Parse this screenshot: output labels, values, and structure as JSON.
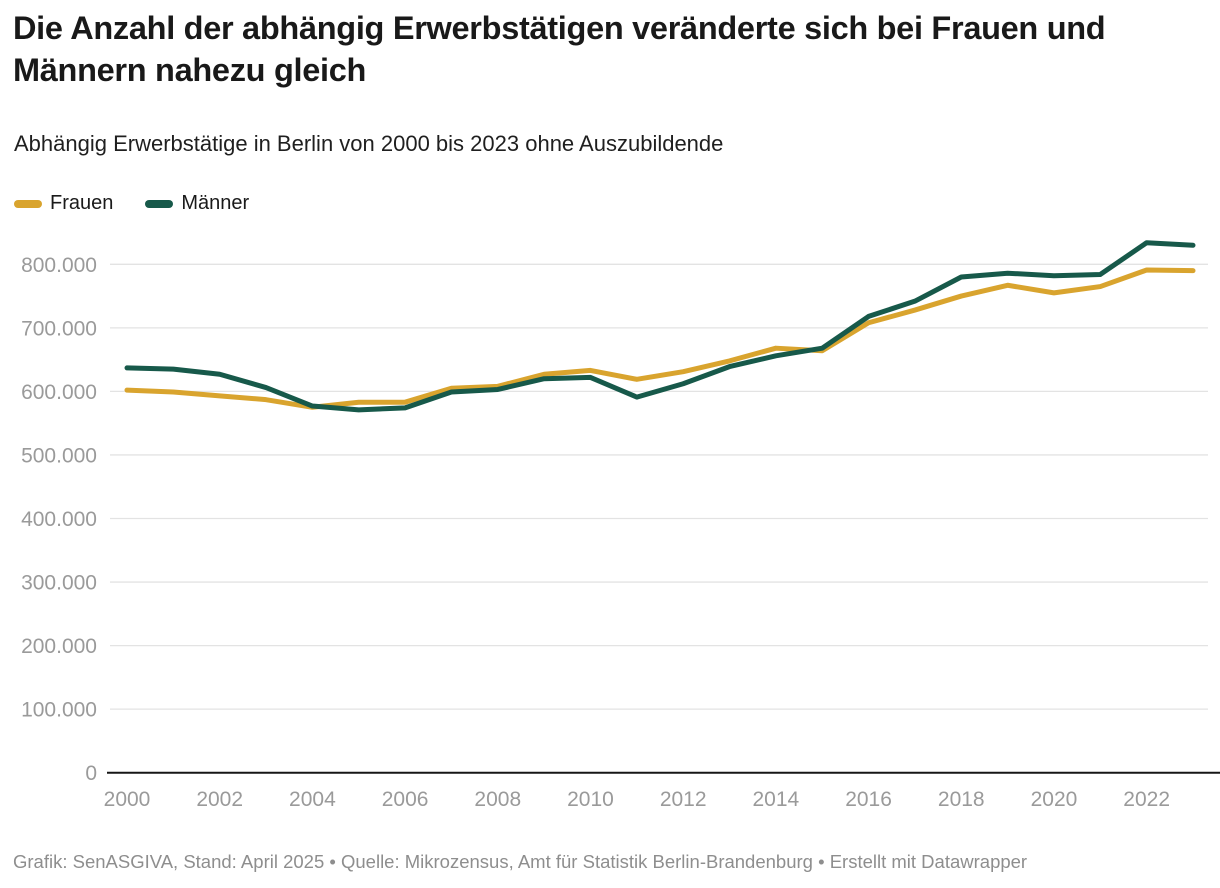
{
  "header": {
    "title": "Die Anzahl der abhängig Erwerbstätigen veränderte sich bei Frauen und Männern nahezu gleich",
    "subtitle": "Abhängig Erwerbstätige in Berlin von 2000 bis 2023 ohne Auszubildende"
  },
  "legend": {
    "items": [
      {
        "label": "Frauen",
        "color": "#D9A42E"
      },
      {
        "label": "Männer",
        "color": "#17594A"
      }
    ]
  },
  "chart_data": {
    "type": "line",
    "title": "Die Anzahl der abhängig Erwerbstätigen veränderte sich bei Frauen und Männern nahezu gleich",
    "subtitle": "Abhängig Erwerbstätige in Berlin von 2000 bis 2023 ohne Auszubildende",
    "x": [
      2000,
      2001,
      2002,
      2003,
      2004,
      2005,
      2006,
      2007,
      2008,
      2009,
      2010,
      2011,
      2012,
      2013,
      2014,
      2015,
      2016,
      2017,
      2018,
      2019,
      2020,
      2021,
      2022,
      2023
    ],
    "series": [
      {
        "name": "Frauen",
        "color": "#D9A42E",
        "values": [
          602000,
          599000,
          593000,
          587000,
          575000,
          583000,
          583000,
          605000,
          608000,
          627000,
          633000,
          619000,
          631000,
          648000,
          668000,
          664000,
          708000,
          728000,
          750000,
          767000,
          755000,
          765000,
          791000,
          790000
        ]
      },
      {
        "name": "Männer",
        "color": "#17594A",
        "values": [
          637000,
          635000,
          627000,
          606000,
          577000,
          571000,
          574000,
          599000,
          603000,
          620000,
          622000,
          591000,
          612000,
          639000,
          656000,
          668000,
          718000,
          742000,
          780000,
          786000,
          782000,
          784000,
          834000,
          830000
        ]
      }
    ],
    "ylim": [
      0,
      850000
    ],
    "yticks": [
      0,
      100000,
      200000,
      300000,
      400000,
      500000,
      600000,
      700000,
      800000
    ],
    "ytick_labels": [
      "0",
      "100.000",
      "200.000",
      "300.000",
      "400.000",
      "500.000",
      "600.000",
      "700.000",
      "800.000"
    ],
    "xticks": [
      2000,
      2002,
      2004,
      2006,
      2008,
      2010,
      2012,
      2014,
      2016,
      2018,
      2020,
      2022
    ],
    "grid": true,
    "legend_position": "top-left",
    "axis_color": "#161616",
    "grid_color": "#e3e3e3",
    "tick_label_color": "#9a9a9a"
  },
  "footer": {
    "text": "Grafik: SenASGIVA, Stand: April 2025 • Quelle: Mikrozensus, Amt für Statistik Berlin-Brandenburg • Erstellt mit Datawrapper"
  }
}
